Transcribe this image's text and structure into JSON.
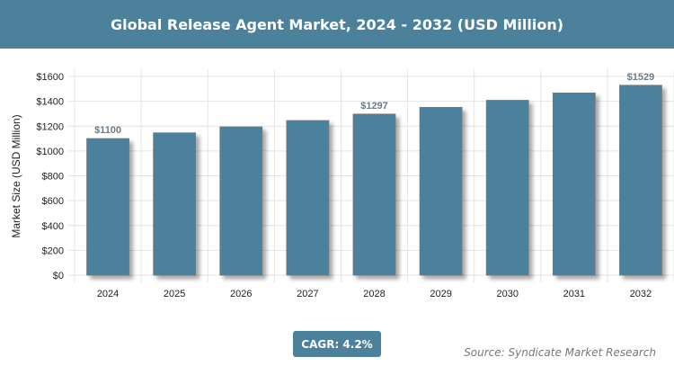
{
  "title": "Global Release Agent Market, 2024 - 2032 (USD Million)",
  "cagr_label": "CAGR: 4.2%",
  "source": "Source: Syndicate Market Research",
  "colors": {
    "bar": "#4c819c",
    "header": "#4c819c"
  },
  "chart_data": {
    "type": "bar",
    "title": "Global Release Agent Market, 2024 - 2032 (USD Million)",
    "xlabel": "",
    "ylabel": "Market Size (USD Million)",
    "categories": [
      "2024",
      "2025",
      "2026",
      "2027",
      "2028",
      "2029",
      "2030",
      "2031",
      "2032"
    ],
    "values": [
      1100,
      1146,
      1194,
      1245,
      1297,
      1351,
      1408,
      1467,
      1529
    ],
    "data_labels": {
      "0": "$1100",
      "4": "$1297",
      "8": "$1529"
    },
    "ylim": [
      0,
      1600
    ],
    "yticks": [
      0,
      200,
      400,
      600,
      800,
      1000,
      1200,
      1400,
      1600
    ],
    "ytick_labels": [
      "$0",
      "$200",
      "$400",
      "$600",
      "$800",
      "$1000",
      "$1200",
      "$1400",
      "$1600"
    ],
    "grid": true
  }
}
